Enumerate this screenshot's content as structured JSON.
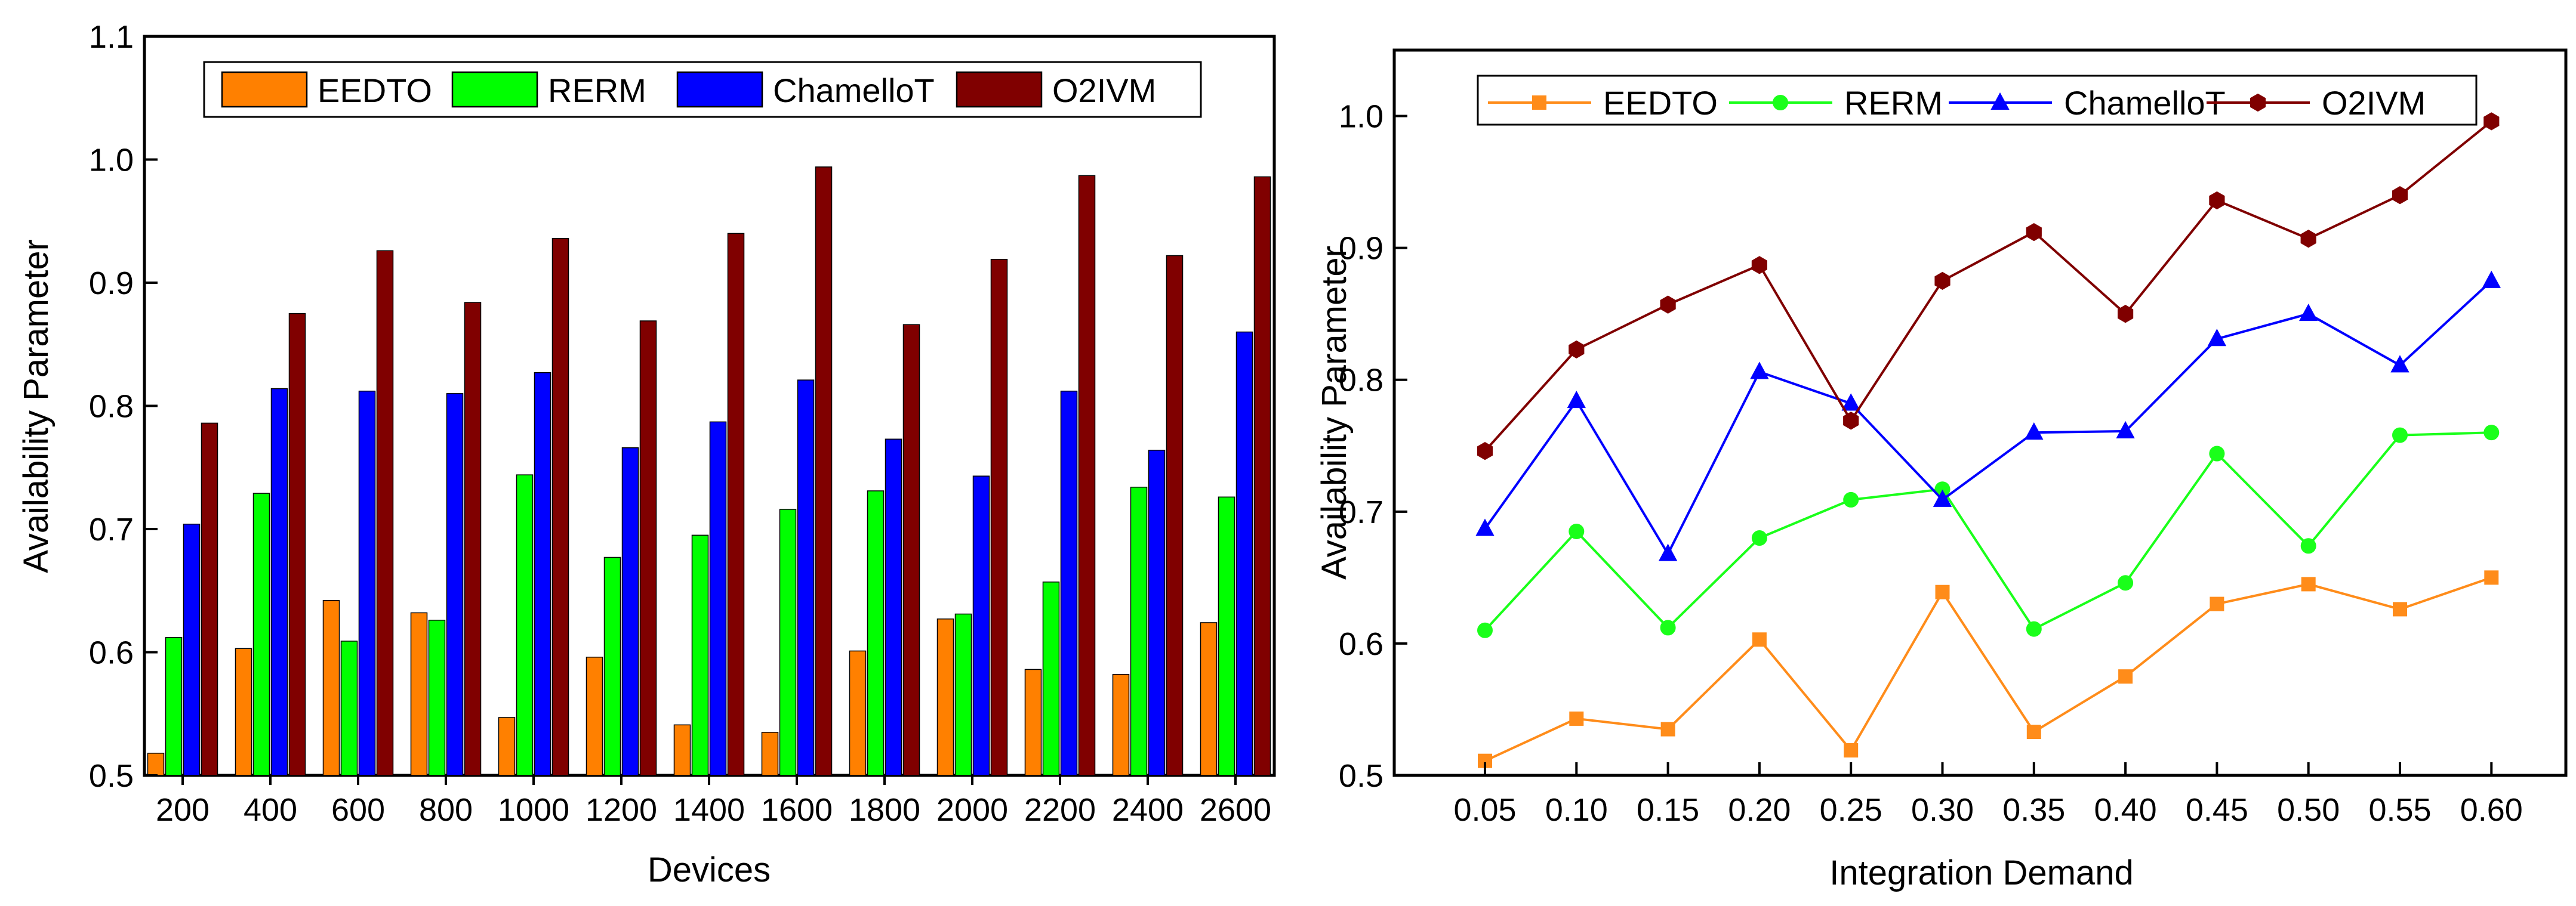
{
  "colors": {
    "EEDTO": "#ff8000",
    "RERM": "#00ff00",
    "ChamelloT": "#0000ff",
    "O2IVM": "#800000",
    "EEDTO_line": "#ff8c1a",
    "RERM_line": "#1aff1a"
  },
  "chart_data": [
    {
      "type": "bar",
      "title": "",
      "xlabel": "Devices",
      "ylabel": "Availability Parameter",
      "ylim": [
        0.5,
        1.1
      ],
      "yticks": [
        "0.5",
        "0.6",
        "0.7",
        "0.8",
        "0.9",
        "1.0",
        "1.1"
      ],
      "legend_position": "top",
      "categories": [
        "200",
        "400",
        "600",
        "800",
        "1000",
        "1200",
        "1400",
        "1600",
        "1800",
        "2000",
        "2200",
        "2400",
        "2600"
      ],
      "series": [
        {
          "name": "EEDTO",
          "values": [
            0.518,
            0.603,
            0.642,
            0.632,
            0.547,
            0.596,
            0.541,
            0.535,
            0.601,
            0.627,
            0.586,
            0.582,
            0.624
          ]
        },
        {
          "name": "RERM",
          "values": [
            0.612,
            0.729,
            0.609,
            0.626,
            0.744,
            0.677,
            0.695,
            0.716,
            0.731,
            0.631,
            0.657,
            0.734,
            0.726
          ]
        },
        {
          "name": "ChamelloT",
          "values": [
            0.704,
            0.814,
            0.812,
            0.81,
            0.827,
            0.766,
            0.787,
            0.821,
            0.773,
            0.743,
            0.812,
            0.764,
            0.86
          ]
        },
        {
          "name": "O2IVM",
          "values": [
            0.786,
            0.875,
            0.926,
            0.884,
            0.936,
            0.869,
            0.94,
            0.994,
            0.866,
            0.919,
            0.987,
            0.922,
            0.986
          ]
        }
      ]
    },
    {
      "type": "line",
      "title": "",
      "xlabel": "Integration Demand",
      "ylabel": "Availability Parameter",
      "ylim": [
        0.5,
        1.05
      ],
      "yticks": [
        "0.5",
        "0.6",
        "0.7",
        "0.8",
        "0.9",
        "1.0"
      ],
      "legend_position": "top",
      "x": [
        "0.05",
        "0.10",
        "0.15",
        "0.20",
        "0.25",
        "0.30",
        "0.35",
        "0.40",
        "0.45",
        "0.50",
        "0.55",
        "0.60"
      ],
      "series": [
        {
          "name": "EEDTO",
          "marker": "square",
          "values": [
            0.511,
            0.543,
            0.535,
            0.603,
            0.519,
            0.639,
            0.533,
            0.575,
            0.63,
            0.645,
            0.626,
            0.65
          ]
        },
        {
          "name": "RERM",
          "marker": "circle",
          "values": [
            0.61,
            0.685,
            0.612,
            0.68,
            0.709,
            0.717,
            0.611,
            0.646,
            0.744,
            0.674,
            0.758,
            0.76
          ]
        },
        {
          "name": "ChamelloT",
          "marker": "triangle",
          "values": [
            0.687,
            0.784,
            0.668,
            0.806,
            0.782,
            0.709,
            0.76,
            0.761,
            0.831,
            0.85,
            0.811,
            0.875
          ]
        },
        {
          "name": "O2IVM",
          "marker": "hexagon",
          "values": [
            0.746,
            0.823,
            0.857,
            0.887,
            0.769,
            0.875,
            0.912,
            0.85,
            0.936,
            0.907,
            0.94,
            0.996
          ]
        }
      ]
    }
  ]
}
